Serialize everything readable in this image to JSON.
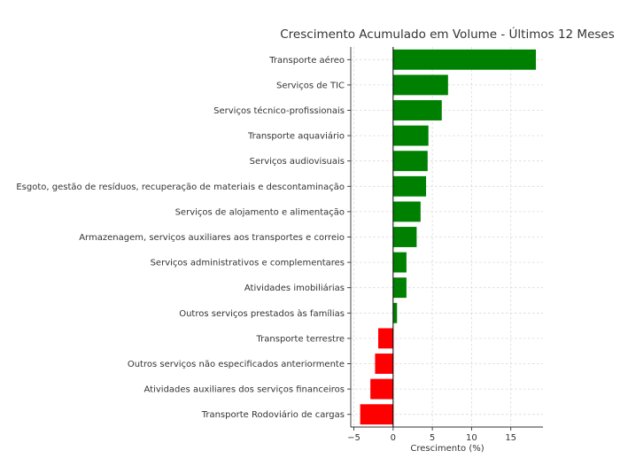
{
  "chart_data": {
    "type": "bar",
    "orientation": "horizontal",
    "title": "Crescimento Acumulado em Volume - Últimos 12 Meses",
    "xlabel": "Crescimento (%)",
    "ylabel": "",
    "categories": [
      "Transporte aéreo",
      "Serviços de TIC",
      "Serviços técnico-profissionais",
      "Transporte aquaviário",
      "Serviços audiovisuais",
      "Esgoto, gestão de resíduos, recuperação de materiais e descontaminação",
      "Serviços de alojamento e alimentação",
      "Armazenagem, serviços auxiliares aos transportes e correio",
      "Serviços administrativos e complementares",
      "Atividades imobiliárias",
      "Outros serviços prestados às famílias",
      "Transporte terrestre",
      "Outros serviços não especificados anteriormente",
      "Atividades auxiliares dos serviços financeiros",
      "Transporte Rodoviário de cargas"
    ],
    "values": [
      18.2,
      7.0,
      6.2,
      4.5,
      4.4,
      4.2,
      3.5,
      3.0,
      1.7,
      1.7,
      0.5,
      -1.9,
      -2.3,
      -2.9,
      -4.2
    ],
    "xlim": [
      -5.4,
      19.1
    ],
    "xticks": [
      -5,
      0,
      5,
      10,
      15
    ],
    "xtick_labels": [
      "−5",
      "0",
      "5",
      "10",
      "15"
    ],
    "grid": true,
    "colors": {
      "positive": "#008000",
      "negative": "#ff0000",
      "zero_line": "#000000"
    }
  }
}
